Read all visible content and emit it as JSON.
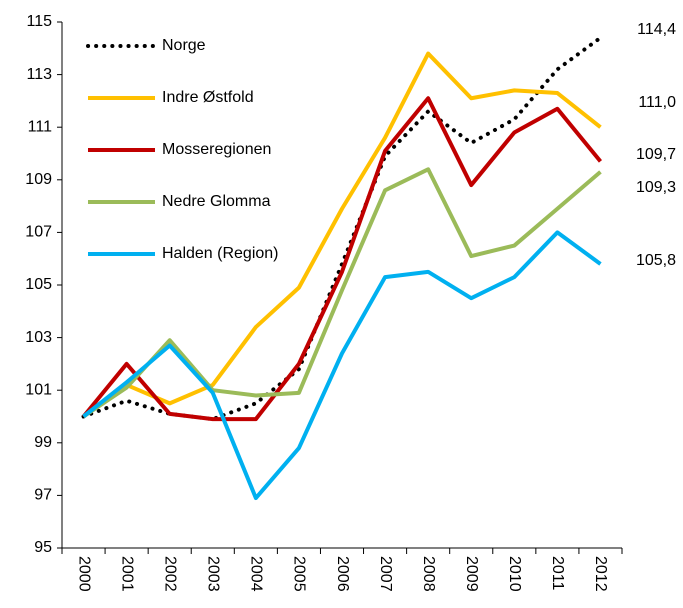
{
  "chart_data": {
    "type": "line",
    "categories": [
      "2000",
      "2001",
      "2002",
      "2003",
      "2004",
      "2005",
      "2006",
      "2007",
      "2008",
      "2009",
      "2010",
      "2011",
      "2012"
    ],
    "ylim": [
      95,
      115
    ],
    "yticks": [
      95,
      97,
      99,
      101,
      103,
      105,
      107,
      109,
      111,
      113,
      115
    ],
    "legend": "top-left",
    "series": [
      {
        "name": "Norge",
        "color": "#000000",
        "dash": "dotted",
        "values": [
          100,
          100.6,
          100.1,
          99.9,
          100.5,
          101.8,
          105.8,
          109.9,
          111.6,
          110.4,
          111.3,
          113.2,
          114.4
        ],
        "value_labels": [
          null,
          null,
          null,
          null,
          null,
          null,
          null,
          null,
          null,
          null,
          null,
          null,
          "114,4"
        ]
      },
      {
        "name": "Indre Østfold",
        "color": "#ffc000",
        "values": [
          100,
          101.2,
          100.5,
          101.2,
          103.4,
          104.9,
          107.9,
          110.6,
          113.8,
          112.1,
          112.4,
          112.3,
          111.0
        ],
        "value_labels": [
          null,
          null,
          null,
          null,
          null,
          null,
          null,
          null,
          null,
          null,
          null,
          null,
          "111,0"
        ]
      },
      {
        "name": "Mosseregionen",
        "color": "#c00000",
        "values": [
          100,
          102.0,
          100.1,
          99.9,
          99.9,
          102.0,
          105.5,
          110.1,
          112.1,
          108.8,
          110.8,
          111.7,
          109.7
        ],
        "value_labels": [
          null,
          null,
          null,
          null,
          null,
          null,
          null,
          null,
          null,
          null,
          null,
          null,
          "109,7"
        ]
      },
      {
        "name": "Nedre Glomma",
        "color": "#9bbb59",
        "values": [
          100,
          101.1,
          102.9,
          101.0,
          100.8,
          100.9,
          104.8,
          108.6,
          109.4,
          106.1,
          106.5,
          107.9,
          109.3
        ],
        "value_labels": [
          null,
          null,
          null,
          null,
          null,
          null,
          null,
          null,
          null,
          null,
          null,
          null,
          "109,3"
        ]
      },
      {
        "name": "Halden (Region)",
        "color": "#00b0f0",
        "values": [
          100,
          101.3,
          102.7,
          100.9,
          96.9,
          98.8,
          102.4,
          105.3,
          105.5,
          104.5,
          105.3,
          107.0,
          105.8
        ],
        "value_labels": [
          null,
          null,
          null,
          null,
          null,
          null,
          null,
          null,
          null,
          null,
          null,
          null,
          "105,8"
        ]
      }
    ]
  }
}
